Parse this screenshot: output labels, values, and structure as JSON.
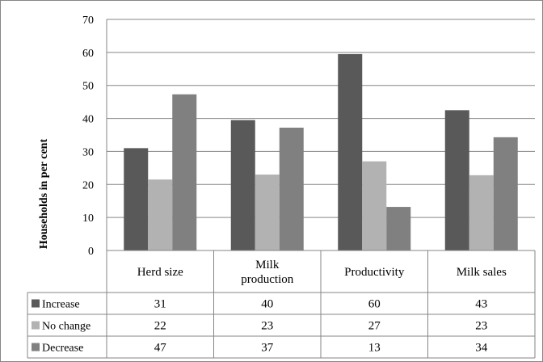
{
  "chart_data": {
    "type": "bar",
    "title": "",
    "xlabel": "",
    "ylabel": "Households in per cent",
    "ylim": [
      0,
      70
    ],
    "yticks": [
      0,
      10,
      20,
      30,
      40,
      50,
      60,
      70
    ],
    "grid": true,
    "legend": "data-table-left",
    "categories": [
      "Herd size",
      "Milk production",
      "Productivity",
      "Milk sales"
    ],
    "category_lines": [
      [
        "Herd size"
      ],
      [
        "Milk",
        "production"
      ],
      [
        "Productivity"
      ],
      [
        "Milk sales"
      ]
    ],
    "series": [
      {
        "name": "Increase",
        "color": "#595959",
        "values": [
          31,
          39.5,
          59.5,
          42.5
        ],
        "table_values": [
          "31",
          "40",
          "60",
          "43"
        ]
      },
      {
        "name": "No change",
        "color": "#b2b2b2",
        "values": [
          21.5,
          23,
          27,
          22.8
        ],
        "table_values": [
          "22",
          "23",
          "27",
          "23"
        ]
      },
      {
        "name": "Decrease",
        "color": "#808080",
        "values": [
          47.3,
          37.2,
          13.2,
          34.3
        ],
        "table_values": [
          "47",
          "37",
          "13",
          "34"
        ]
      }
    ]
  }
}
